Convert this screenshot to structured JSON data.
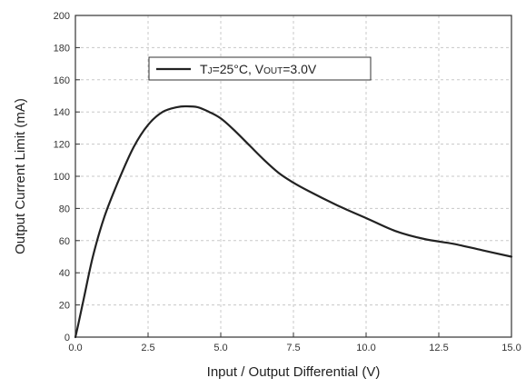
{
  "chart_data": {
    "type": "line",
    "xlabel": "Input / Output Differential (V)",
    "ylabel": "Output Current Limit (mA)",
    "xlim": [
      0,
      15
    ],
    "ylim": [
      0,
      200
    ],
    "x_ticks": [
      "0.0",
      "2.5",
      "5.0",
      "7.5",
      "10.0",
      "12.5",
      "15.0"
    ],
    "y_ticks": [
      "0",
      "20",
      "40",
      "60",
      "80",
      "100",
      "120",
      "140",
      "160",
      "180",
      "200"
    ],
    "grid": true,
    "legend_placement": "top-center",
    "legend": {
      "t_main": "T",
      "t_sub": "J",
      "temp_text": "=25°C, V",
      "v_sub": "OUT",
      "v_text": "=3.0V"
    },
    "series": [
      {
        "color": "#222222",
        "x": [
          0.0,
          0.1,
          0.3,
          0.6,
          1.0,
          1.5,
          2.0,
          2.5,
          3.0,
          3.5,
          3.8,
          4.2,
          4.6,
          5.0,
          5.5,
          6.0,
          6.5,
          7.0,
          7.5,
          8.0,
          9.0,
          10.0,
          11.0,
          12.0,
          13.0,
          14.0,
          15.0
        ],
        "y": [
          0,
          8,
          25,
          50,
          75,
          98,
          118,
          132,
          140,
          143,
          143.5,
          143,
          140,
          136,
          128,
          119,
          110,
          102,
          96,
          91,
          82,
          74,
          66,
          61,
          58,
          54,
          50
        ]
      }
    ]
  }
}
